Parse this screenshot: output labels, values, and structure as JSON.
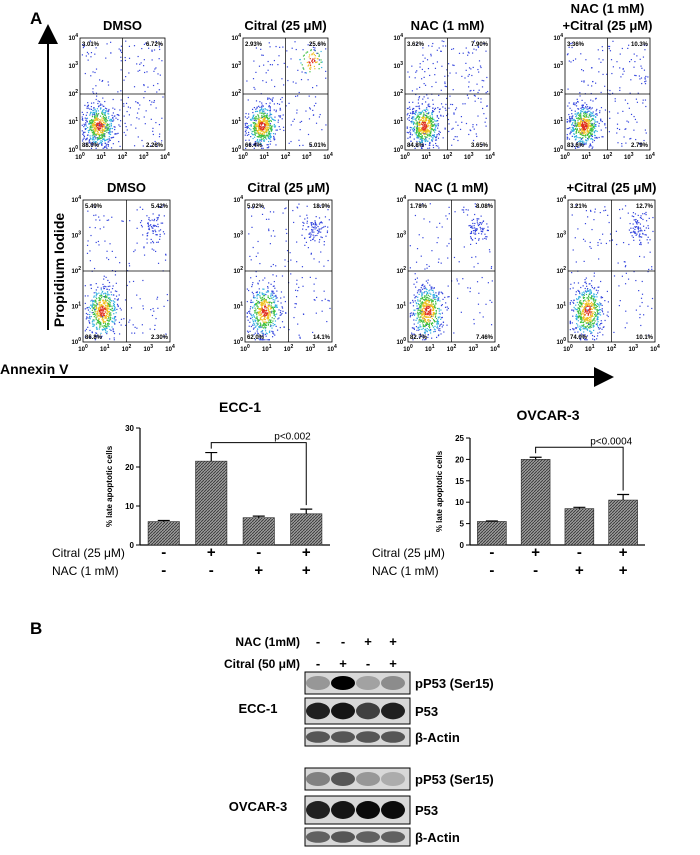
{
  "panel_a": {
    "label": "A",
    "y_label": "Propidium Iodide",
    "x_label": "Annexin V",
    "tick_base": "10",
    "tick_exponents": [
      0,
      1,
      2,
      3,
      4
    ],
    "rows": [
      {
        "plots": [
          {
            "title": [
              "DMSO"
            ],
            "quadrants": [
              "3.01%",
              "6.72%",
              "88.0%",
              "2.26%"
            ]
          },
          {
            "title": [
              "Citral (25 μM)"
            ],
            "quadrants": [
              "2.93%",
              "25.6%",
              "66.4%",
              "5.01%"
            ]
          },
          {
            "title": [
              "NAC (1 mM)"
            ],
            "quadrants": [
              "3.62%",
              "7.90%",
              "84.8%",
              "3.65%"
            ]
          },
          {
            "title": [
              "NAC (1 mM)",
              "+Citral (25 μM)"
            ],
            "quadrants": [
              "3.36%",
              "10.3%",
              "83.6%",
              "2.79%"
            ]
          }
        ]
      },
      {
        "plots": [
          {
            "title": [
              "DMSO"
            ],
            "quadrants": [
              "5.49%",
              "5.42%",
              "86.8%",
              "2.30%"
            ]
          },
          {
            "title": [
              "Citral (25 μM)"
            ],
            "quadrants": [
              "5.02%",
              "18.9%",
              "62.0%",
              "14.1%"
            ]
          },
          {
            "title": [
              "NAC (1 mM)"
            ],
            "quadrants": [
              "1.78%",
              "8.08%",
              "82.7%",
              "7.46%"
            ]
          },
          {
            "title": [
              "+Citral (25 μM)"
            ],
            "quadrants": [
              "3.21%",
              "12.7%",
              "74.0%",
              "10.1%"
            ]
          }
        ]
      }
    ]
  },
  "chart_data": [
    {
      "type": "bar",
      "title": "ECC-1",
      "y_label": "% late apoptotic cells",
      "series": [
        {
          "name": null,
          "color": "#8a8a8a",
          "values": [
            6,
            21.5,
            7,
            8
          ],
          "errors": [
            0.3,
            2.2,
            0.4,
            1.2
          ]
        }
      ],
      "ylim": [
        0,
        30
      ],
      "yticks": [
        0,
        10,
        20,
        30
      ],
      "conditions": [
        {
          "name": "Citral (25 μM)",
          "signs": [
            "-",
            "+",
            "-",
            "+"
          ]
        },
        {
          "name": "NAC (1 mM)",
          "signs": [
            "-",
            "-",
            "+",
            "+"
          ]
        }
      ],
      "annotation": "p<0.002"
    },
    {
      "type": "bar",
      "title": "OVCAR-3",
      "y_label": "% late apoptotic cells",
      "series": [
        {
          "name": null,
          "color": "#8a8a8a",
          "values": [
            5.5,
            20,
            8.5,
            10.5
          ],
          "errors": [
            0.1,
            0.5,
            0.3,
            1.3
          ]
        }
      ],
      "ylim": [
        0,
        25
      ],
      "yticks": [
        0,
        5,
        10,
        15,
        20,
        25
      ],
      "conditions": [
        {
          "name": "Citral (25 μM)",
          "signs": [
            "-",
            "+",
            "-",
            "+"
          ]
        },
        {
          "name": "NAC (1 mM)",
          "signs": [
            "-",
            "-",
            "+",
            "+"
          ]
        }
      ],
      "annotation": "p<0.0004"
    }
  ],
  "panel_b": {
    "label": "B",
    "treatments": [
      {
        "name": "NAC (1mM)",
        "signs": [
          "-",
          "-",
          "+",
          "+"
        ]
      },
      {
        "name": "Citral (50 μM)",
        "signs": [
          "-",
          "+",
          "-",
          "+"
        ]
      }
    ],
    "blots": [
      {
        "cell_line": "ECC-1",
        "bands": [
          "pP53 (Ser15)",
          "P53",
          "β-Actin"
        ]
      },
      {
        "cell_line": "OVCAR-3",
        "bands": [
          "pP53 (Ser15)",
          "P53",
          "β-Actin"
        ]
      }
    ]
  }
}
